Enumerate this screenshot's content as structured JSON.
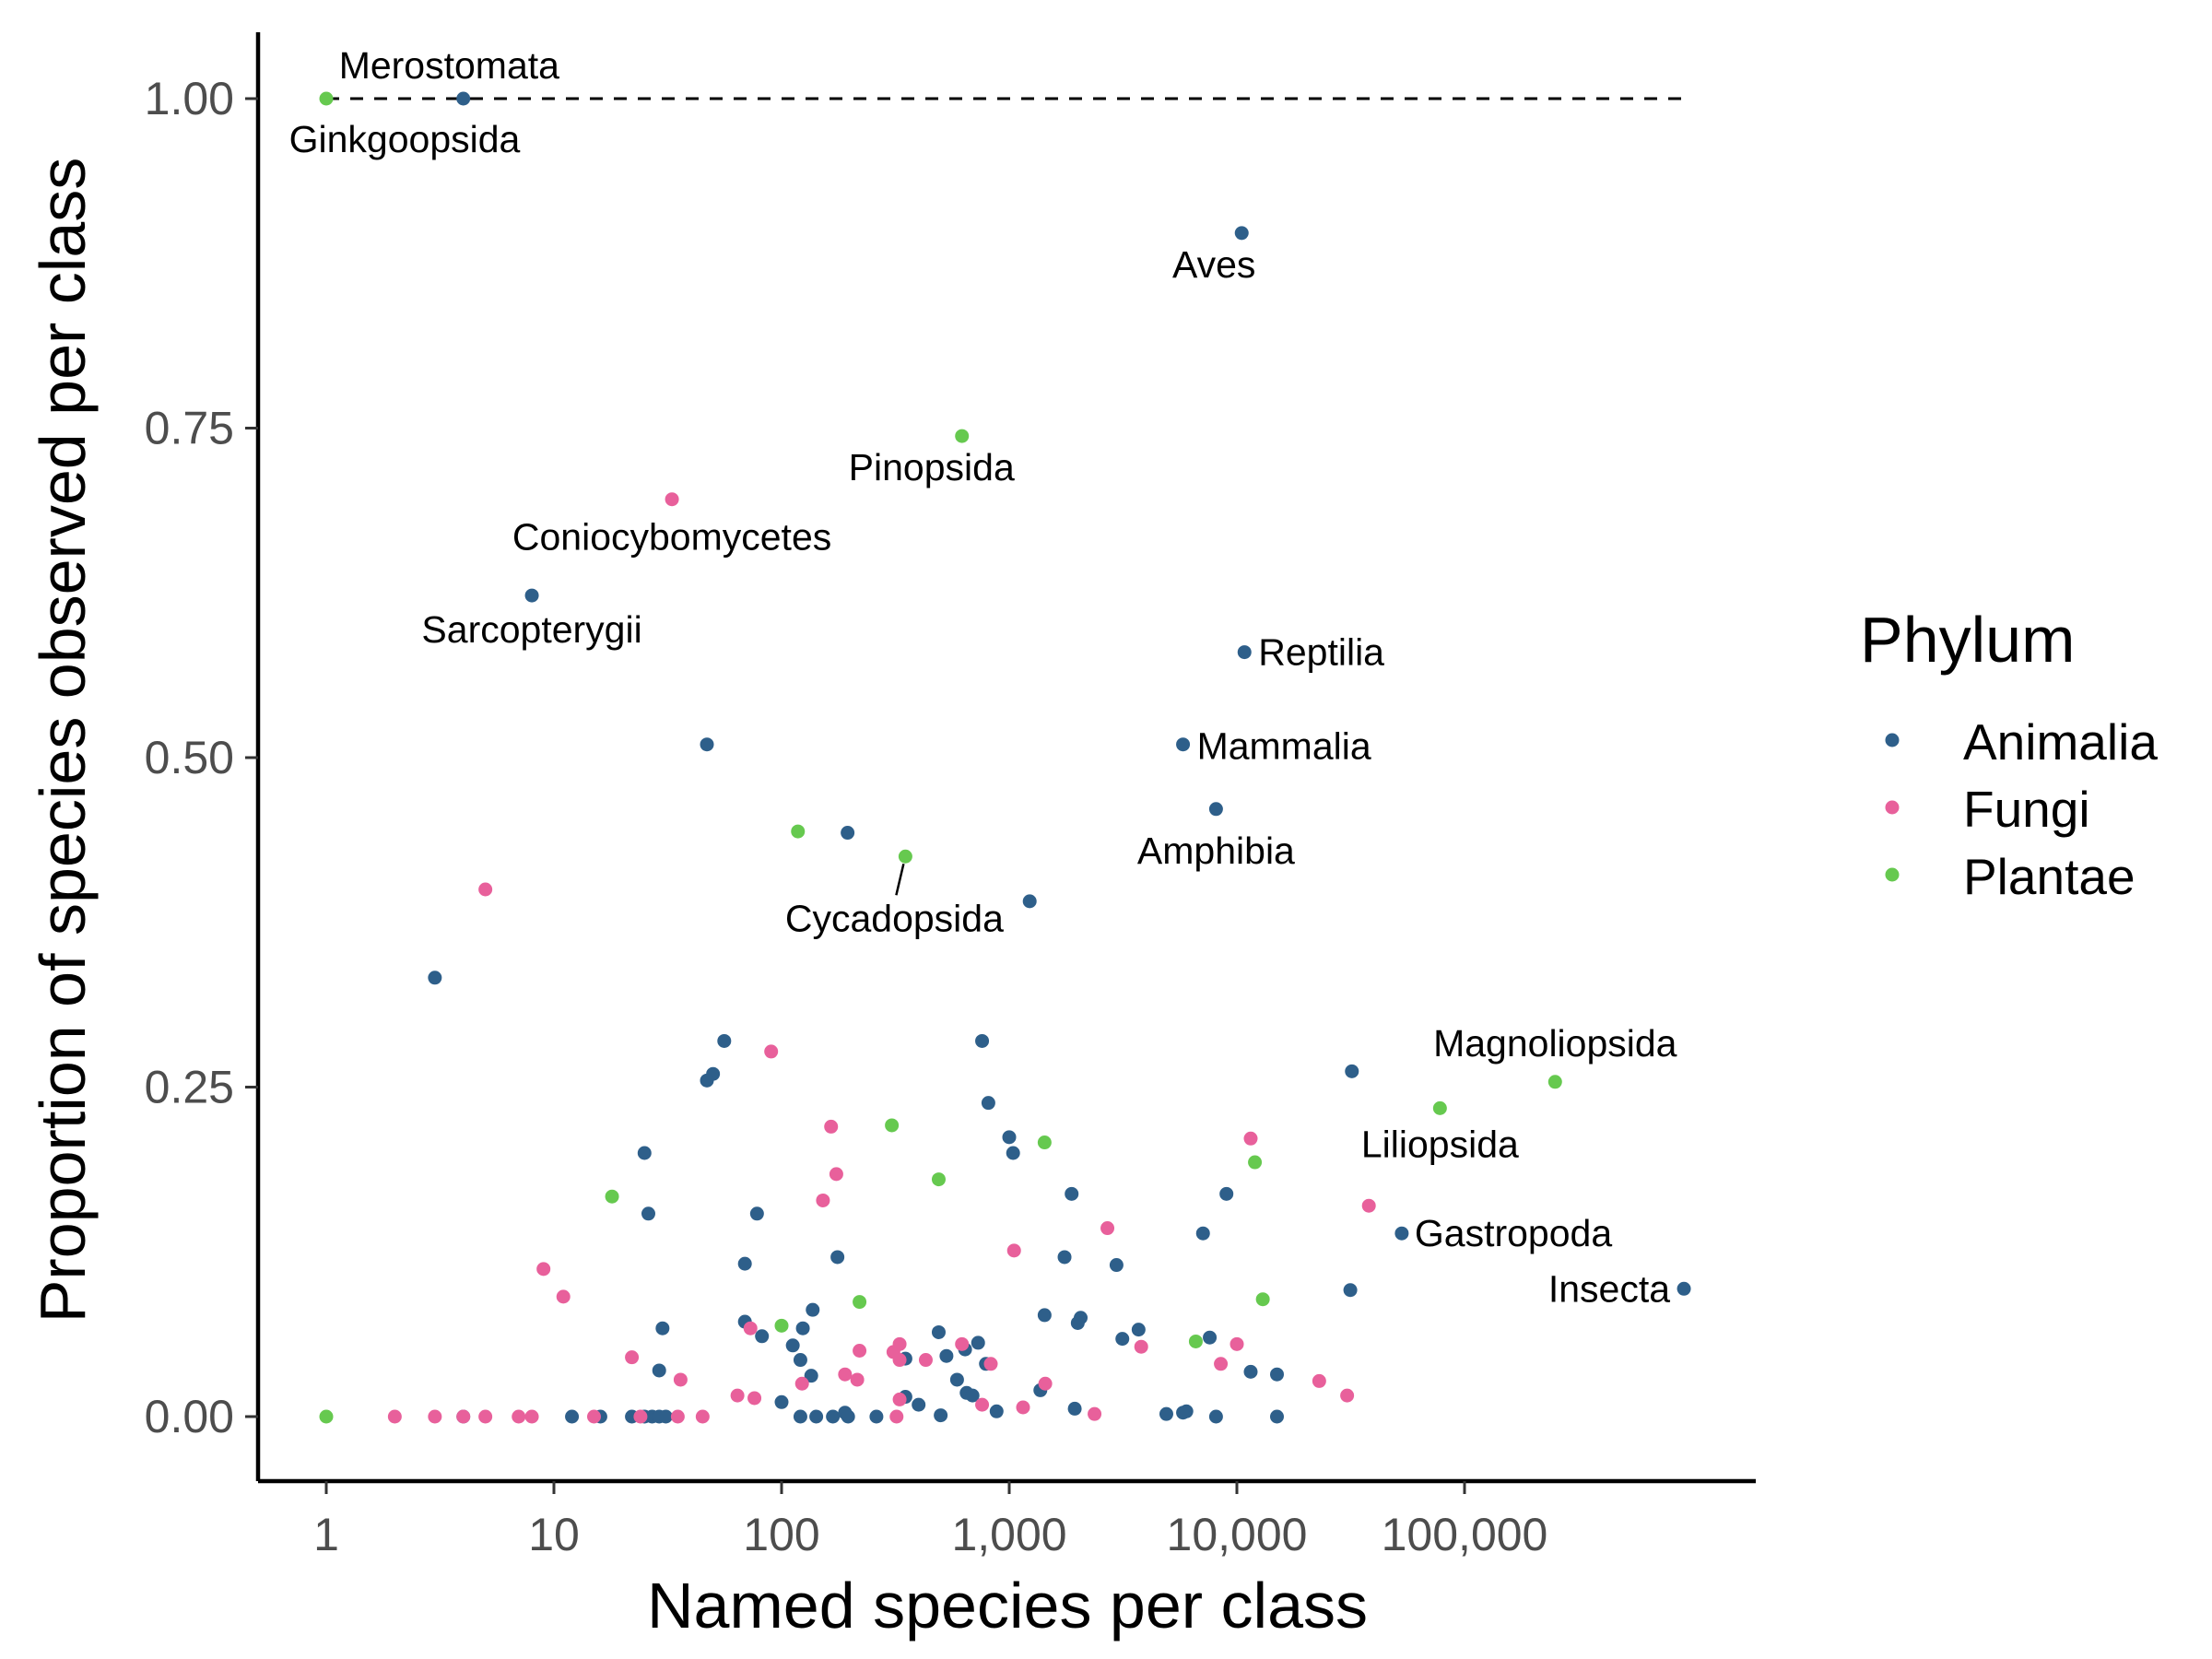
{
  "chart_data": {
    "type": "scatter",
    "xlabel": "Named species per class",
    "ylabel": "Proportion of species observed per class",
    "x_scale": "log10",
    "x_ticks": [
      {
        "value": 1,
        "label": "1"
      },
      {
        "value": 10,
        "label": "10"
      },
      {
        "value": 100,
        "label": "100"
      },
      {
        "value": 1000,
        "label": "1,000"
      },
      {
        "value": 10000,
        "label": "10,000"
      },
      {
        "value": 100000,
        "label": "100,000"
      }
    ],
    "y_ticks": [
      {
        "value": 0,
        "label": "0.00"
      },
      {
        "value": 0.25,
        "label": "0.25"
      },
      {
        "value": 0.5,
        "label": "0.50"
      },
      {
        "value": 0.75,
        "label": "0.75"
      },
      {
        "value": 1,
        "label": "1.00"
      }
    ],
    "xlim": [
      0.5,
      3000000
    ],
    "ylim": [
      -0.05,
      1.05
    ],
    "reference_line": {
      "y": 1.0,
      "style": "dashed",
      "x_from": 1,
      "x_to": 920000
    },
    "grid": false,
    "legend": {
      "title": "Phylum",
      "position": "right",
      "entries": [
        {
          "name": "Animalia",
          "color": "#2e5f8a"
        },
        {
          "name": "Fungi",
          "color": "#e8609b"
        },
        {
          "name": "Plantae",
          "color": "#66c94f"
        }
      ]
    },
    "series": [
      {
        "name": "Animalia",
        "color": "#2e5f8a",
        "points": [
          {
            "x": 4,
            "y": 1.0,
            "label": "Merostomata"
          },
          {
            "x": 10500,
            "y": 0.898,
            "label": "Aves"
          },
          {
            "x": 8,
            "y": 0.623,
            "label": "Sarcopterygii"
          },
          {
            "x": 10800,
            "y": 0.58,
            "label": "Reptilia"
          },
          {
            "x": 5800,
            "y": 0.51,
            "label": "Mammalia"
          },
          {
            "x": 8100,
            "y": 0.461,
            "label": "Amphibia"
          },
          {
            "x": 32000,
            "y": 0.262
          },
          {
            "x": 53000,
            "y": 0.139,
            "label": "Gastropoda"
          },
          {
            "x": 920000,
            "y": 0.097,
            "label": "Insecta"
          },
          {
            "x": 31500,
            "y": 0.096
          },
          {
            "x": 47,
            "y": 0.51
          },
          {
            "x": 195,
            "y": 0.443
          },
          {
            "x": 1230,
            "y": 0.391
          },
          {
            "x": 3,
            "y": 0.333
          },
          {
            "x": 56,
            "y": 0.285
          },
          {
            "x": 760,
            "y": 0.285
          },
          {
            "x": 50,
            "y": 0.26
          },
          {
            "x": 47,
            "y": 0.255
          },
          {
            "x": 810,
            "y": 0.238
          },
          {
            "x": 1000,
            "y": 0.212
          },
          {
            "x": 1040,
            "y": 0.2
          },
          {
            "x": 25,
            "y": 0.2
          },
          {
            "x": 1880,
            "y": 0.169
          },
          {
            "x": 9000,
            "y": 0.169
          },
          {
            "x": 26,
            "y": 0.154
          },
          {
            "x": 78,
            "y": 0.154
          },
          {
            "x": 7100,
            "y": 0.139
          },
          {
            "x": 176,
            "y": 0.121
          },
          {
            "x": 1750,
            "y": 0.121
          },
          {
            "x": 69,
            "y": 0.116
          },
          {
            "x": 2960,
            "y": 0.115
          },
          {
            "x": 137,
            "y": 0.081
          },
          {
            "x": 1430,
            "y": 0.077
          },
          {
            "x": 2060,
            "y": 0.075
          },
          {
            "x": 2000,
            "y": 0.071
          },
          {
            "x": 69,
            "y": 0.072
          },
          {
            "x": 30,
            "y": 0.067
          },
          {
            "x": 124,
            "y": 0.067
          },
          {
            "x": 3700,
            "y": 0.066
          },
          {
            "x": 490,
            "y": 0.064
          },
          {
            "x": 82,
            "y": 0.061
          },
          {
            "x": 7600,
            "y": 0.06
          },
          {
            "x": 3140,
            "y": 0.059
          },
          {
            "x": 730,
            "y": 0.056
          },
          {
            "x": 112,
            "y": 0.054
          },
          {
            "x": 640,
            "y": 0.051
          },
          {
            "x": 530,
            "y": 0.046
          },
          {
            "x": 350,
            "y": 0.044
          },
          {
            "x": 121,
            "y": 0.043
          },
          {
            "x": 790,
            "y": 0.04
          },
          {
            "x": 29,
            "y": 0.035
          },
          {
            "x": 11500,
            "y": 0.034
          },
          {
            "x": 15000,
            "y": 0.032
          },
          {
            "x": 135,
            "y": 0.031
          },
          {
            "x": 590,
            "y": 0.028
          },
          {
            "x": 1370,
            "y": 0.02
          },
          {
            "x": 650,
            "y": 0.018
          },
          {
            "x": 690,
            "y": 0.016
          },
          {
            "x": 350,
            "y": 0.015
          },
          {
            "x": 100,
            "y": 0.011
          },
          {
            "x": 400,
            "y": 0.009
          },
          {
            "x": 1940,
            "y": 0.006
          },
          {
            "x": 880,
            "y": 0.004
          },
          {
            "x": 6000,
            "y": 0.004
          },
          {
            "x": 5800,
            "y": 0.003
          },
          {
            "x": 190,
            "y": 0.003
          },
          {
            "x": 4900,
            "y": 0.002
          },
          {
            "x": 500,
            "y": 0.001
          },
          {
            "x": 4,
            "y": 0
          },
          {
            "x": 12,
            "y": 0
          },
          {
            "x": 16,
            "y": 0
          },
          {
            "x": 22,
            "y": 0
          },
          {
            "x": 25,
            "y": 0
          },
          {
            "x": 27,
            "y": 0
          },
          {
            "x": 29,
            "y": 0
          },
          {
            "x": 31,
            "y": 0
          },
          {
            "x": 121,
            "y": 0
          },
          {
            "x": 142,
            "y": 0
          },
          {
            "x": 168,
            "y": 0
          },
          {
            "x": 196,
            "y": 0
          },
          {
            "x": 261,
            "y": 0
          },
          {
            "x": 8100,
            "y": 0
          },
          {
            "x": 15000,
            "y": 0
          }
        ]
      },
      {
        "name": "Fungi",
        "color": "#e8609b",
        "points": [
          {
            "x": 33,
            "y": 0.696,
            "label": "Coniocybomycetes"
          },
          {
            "x": 5,
            "y": 0.4
          },
          {
            "x": 90,
            "y": 0.277
          },
          {
            "x": 165,
            "y": 0.22
          },
          {
            "x": 11500,
            "y": 0.211
          },
          {
            "x": 174,
            "y": 0.184
          },
          {
            "x": 152,
            "y": 0.164
          },
          {
            "x": 38000,
            "y": 0.16
          },
          {
            "x": 2700,
            "y": 0.143
          },
          {
            "x": 1050,
            "y": 0.126
          },
          {
            "x": 9,
            "y": 0.112
          },
          {
            "x": 11,
            "y": 0.091
          },
          {
            "x": 73,
            "y": 0.067
          },
          {
            "x": 10000,
            "y": 0.055
          },
          {
            "x": 620,
            "y": 0.055
          },
          {
            "x": 330,
            "y": 0.055
          },
          {
            "x": 3800,
            "y": 0.053
          },
          {
            "x": 310,
            "y": 0.049
          },
          {
            "x": 220,
            "y": 0.05
          },
          {
            "x": 22,
            "y": 0.045
          },
          {
            "x": 330,
            "y": 0.043
          },
          {
            "x": 430,
            "y": 0.043
          },
          {
            "x": 830,
            "y": 0.04
          },
          {
            "x": 8500,
            "y": 0.04
          },
          {
            "x": 190,
            "y": 0.032
          },
          {
            "x": 36,
            "y": 0.028
          },
          {
            "x": 215,
            "y": 0.028
          },
          {
            "x": 23000,
            "y": 0.027
          },
          {
            "x": 123,
            "y": 0.025
          },
          {
            "x": 1440,
            "y": 0.025
          },
          {
            "x": 64,
            "y": 0.016
          },
          {
            "x": 30500,
            "y": 0.016
          },
          {
            "x": 330,
            "y": 0.013
          },
          {
            "x": 76,
            "y": 0.014
          },
          {
            "x": 760,
            "y": 0.009
          },
          {
            "x": 1150,
            "y": 0.007
          },
          {
            "x": 2370,
            "y": 0.002
          },
          {
            "x": 320,
            "y": 0
          },
          {
            "x": 2,
            "y": 0
          },
          {
            "x": 3,
            "y": 0
          },
          {
            "x": 4,
            "y": 0
          },
          {
            "x": 5,
            "y": 0
          },
          {
            "x": 7,
            "y": 0
          },
          {
            "x": 8,
            "y": 0
          },
          {
            "x": 15,
            "y": 0
          },
          {
            "x": 24,
            "y": 0
          },
          {
            "x": 35,
            "y": 0
          },
          {
            "x": 45,
            "y": 0
          }
        ]
      },
      {
        "name": "Plantae",
        "color": "#66c94f",
        "points": [
          {
            "x": 1,
            "y": 1.0,
            "label": "Ginkgoopsida"
          },
          {
            "x": 620,
            "y": 0.744,
            "label": "Pinopsida"
          },
          {
            "x": 350,
            "y": 0.425,
            "label": "Cycadopsida"
          },
          {
            "x": 250000,
            "y": 0.254,
            "label": "Magnoliopsida"
          },
          {
            "x": 78000,
            "y": 0.234,
            "label": "Liliopsida"
          },
          {
            "x": 118,
            "y": 0.444
          },
          {
            "x": 305,
            "y": 0.221
          },
          {
            "x": 1430,
            "y": 0.208
          },
          {
            "x": 12000,
            "y": 0.193
          },
          {
            "x": 490,
            "y": 0.18
          },
          {
            "x": 18,
            "y": 0.167
          },
          {
            "x": 13000,
            "y": 0.089
          },
          {
            "x": 220,
            "y": 0.087
          },
          {
            "x": 100,
            "y": 0.069
          },
          {
            "x": 6600,
            "y": 0.057
          },
          {
            "x": 1,
            "y": 0
          }
        ]
      }
    ]
  }
}
